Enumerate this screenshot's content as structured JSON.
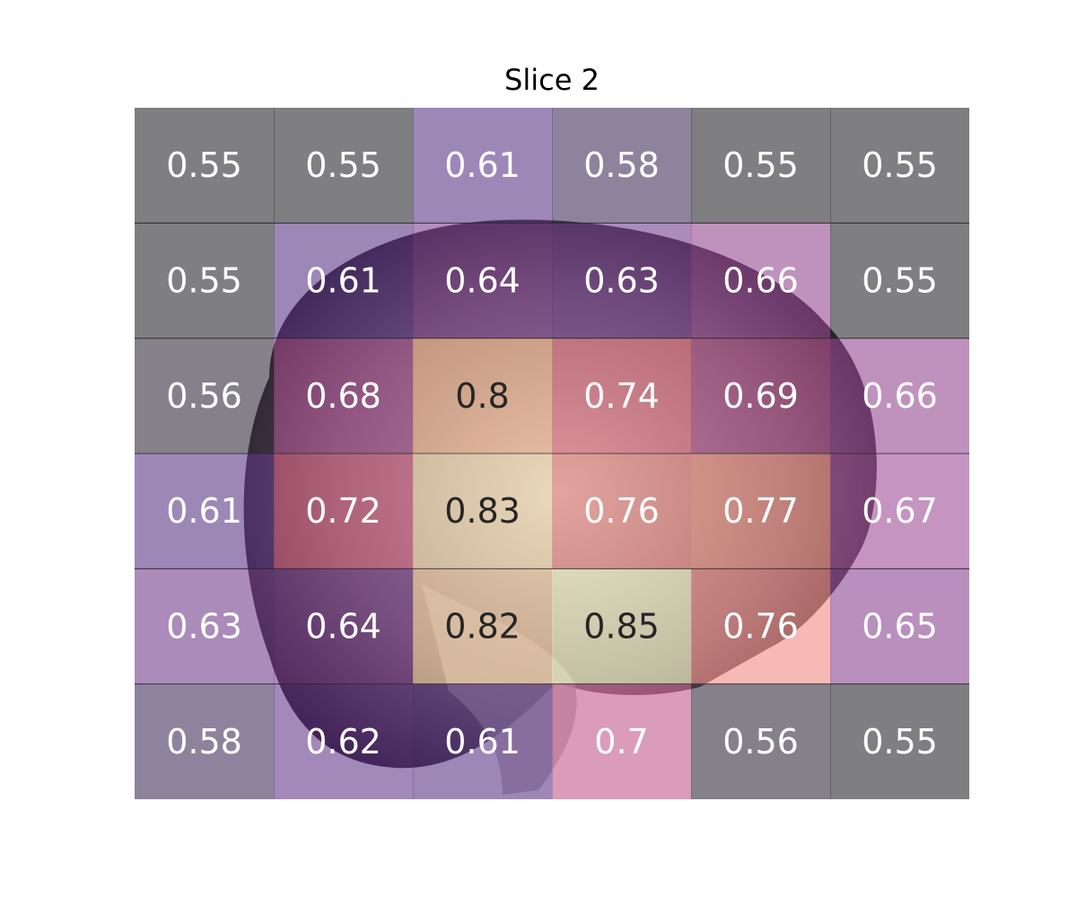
{
  "chart_data": {
    "type": "heatmap",
    "title": "Slice 2",
    "rows": 6,
    "cols": 6,
    "values": [
      [
        0.55,
        0.55,
        0.61,
        0.58,
        0.55,
        0.55
      ],
      [
        0.55,
        0.61,
        0.64,
        0.63,
        0.66,
        0.55
      ],
      [
        0.56,
        0.68,
        0.8,
        0.74,
        0.69,
        0.66
      ],
      [
        0.61,
        0.72,
        0.83,
        0.76,
        0.77,
        0.67
      ],
      [
        0.63,
        0.64,
        0.82,
        0.85,
        0.76,
        0.65
      ],
      [
        0.58,
        0.62,
        0.61,
        0.7,
        0.56,
        0.55
      ]
    ],
    "value_range": [
      0.55,
      0.85
    ],
    "colormap": [
      "#000004",
      "#3b0f70",
      "#8c2981",
      "#de4968",
      "#fe9f6d",
      "#fcfdbf"
    ],
    "background": "brain-mri-sagittal"
  }
}
